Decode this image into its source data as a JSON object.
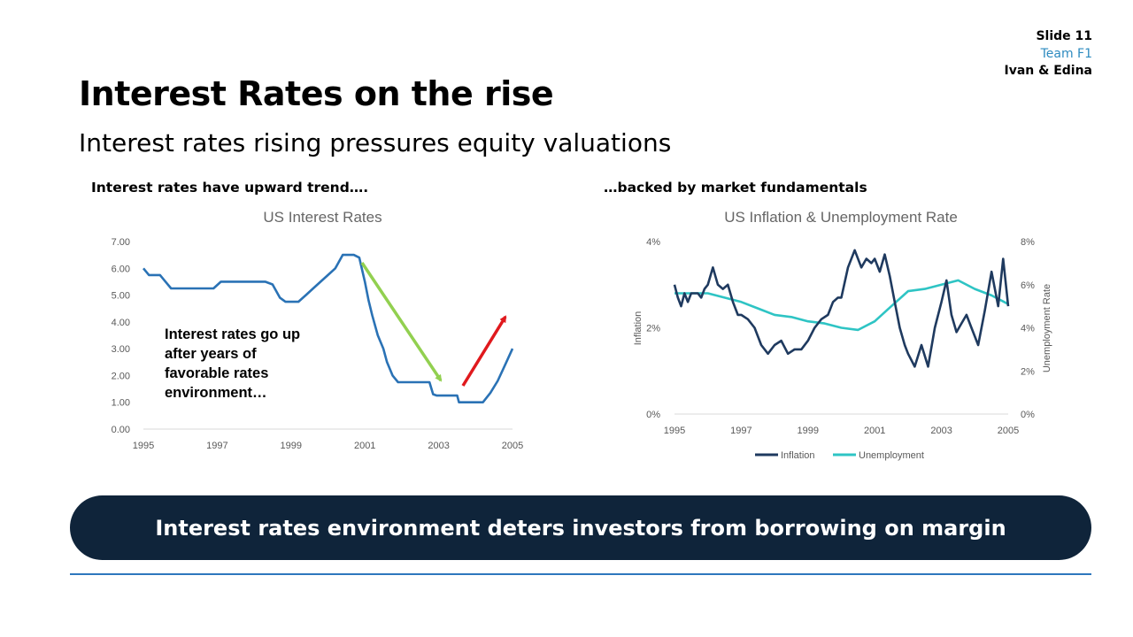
{
  "meta": {
    "slide": "Slide 11",
    "team": "Team F1",
    "authors": "Ivan & Edina"
  },
  "title": "Interest Rates on the rise",
  "subtitle": "Interest rates rising pressures equity valuations",
  "caption_left": "Interest rates have upward trend….",
  "caption_right": "…backed by market fundamentals",
  "banner": "Interest rates environment deters investors from borrowing on margin",
  "colors": {
    "rate_line": "#2a72b5",
    "down_arrow": "#92d050",
    "up_arrow": "#e0191d",
    "inflation": "#1f3a5f",
    "unemployment": "#2ec4c4",
    "banner_bg": "#0f243a",
    "accent": "#2e8bc0"
  },
  "chart_data": [
    {
      "type": "line",
      "title": "US Interest Rates",
      "xlabel": "",
      "ylabel": "",
      "xlim": [
        1995,
        2005
      ],
      "ylim": [
        0,
        7
      ],
      "x_ticks": [
        "1995",
        "1997",
        "1999",
        "2001",
        "2003",
        "2005"
      ],
      "y_ticks": [
        "0.00",
        "1.00",
        "2.00",
        "3.00",
        "4.00",
        "5.00",
        "6.00",
        "7.00"
      ],
      "annotation": "Interest rates go up after years of favorable rates environment…",
      "series": [
        {
          "x": [
            1995.0,
            1995.15,
            1995.3,
            1995.45,
            1995.6,
            1995.75,
            1995.9,
            1996.0,
            1996.1,
            1996.2,
            1996.3,
            1996.5,
            1996.7,
            1996.9,
            1997.1,
            1997.3,
            1997.5,
            1997.7,
            1997.9,
            1998.1,
            1998.3,
            1998.5,
            1998.7,
            1998.85,
            1999.0,
            1999.2,
            1999.4,
            1999.6,
            1999.8,
            2000.0,
            2000.2,
            2000.4,
            2000.55,
            2000.7,
            2000.85,
            2001.0,
            2001.1,
            2001.2,
            2001.35,
            2001.5,
            2001.6,
            2001.75,
            2001.9,
            2002.2,
            2002.5,
            2002.75,
            2002.85,
            2002.95,
            2003.2,
            2003.5,
            2003.55,
            2003.8,
            2004.0,
            2004.2,
            2004.4,
            2004.6,
            2004.8,
            2005.0
          ],
          "values": [
            6.0,
            5.75,
            5.75,
            5.75,
            5.5,
            5.25,
            5.25,
            5.25,
            5.25,
            5.25,
            5.25,
            5.25,
            5.25,
            5.25,
            5.5,
            5.5,
            5.5,
            5.5,
            5.5,
            5.5,
            5.5,
            5.4,
            4.9,
            4.75,
            4.75,
            4.75,
            5.0,
            5.25,
            5.5,
            5.75,
            6.0,
            6.5,
            6.5,
            6.5,
            6.4,
            5.5,
            4.8,
            4.25,
            3.5,
            3.0,
            2.5,
            2.0,
            1.75,
            1.75,
            1.75,
            1.75,
            1.3,
            1.25,
            1.25,
            1.25,
            1.0,
            1.0,
            1.0,
            1.0,
            1.35,
            1.8,
            2.4,
            3.0
          ]
        }
      ]
    },
    {
      "type": "line",
      "title": "US Inflation & Unemployment Rate",
      "xlabel": "",
      "ylabel": "Inflation",
      "y2label": "Unemployment Rate",
      "xlim": [
        1995,
        2005
      ],
      "ylim": [
        0,
        4
      ],
      "y2lim": [
        0,
        8
      ],
      "x_ticks": [
        "1995",
        "1997",
        "1999",
        "2001",
        "2003",
        "2005"
      ],
      "y_ticks": [
        "0%",
        "2%",
        "4%"
      ],
      "y2_ticks": [
        "0%",
        "2%",
        "4%",
        "6%",
        "8%"
      ],
      "legend": "bottom",
      "series": [
        {
          "name": "Inflation",
          "axis": "left",
          "x": [
            1995.0,
            1995.1,
            1995.2,
            1995.3,
            1995.4,
            1995.5,
            1995.6,
            1995.7,
            1995.8,
            1995.9,
            1996.0,
            1996.15,
            1996.3,
            1996.45,
            1996.6,
            1996.75,
            1996.9,
            1997.0,
            1997.2,
            1997.4,
            1997.6,
            1997.8,
            1998.0,
            1998.2,
            1998.4,
            1998.6,
            1998.8,
            1999.0,
            1999.2,
            1999.4,
            1999.6,
            1999.75,
            1999.9,
            2000.0,
            2000.2,
            2000.4,
            2000.6,
            2000.75,
            2000.9,
            2001.0,
            2001.15,
            2001.3,
            2001.45,
            2001.6,
            2001.75,
            2001.9,
            2002.0,
            2002.2,
            2002.4,
            2002.6,
            2002.8,
            2003.0,
            2003.15,
            2003.3,
            2003.45,
            2003.6,
            2003.75,
            2003.9,
            2004.1,
            2004.3,
            2004.5,
            2004.7,
            2004.85,
            2005.0
          ],
          "values": [
            3.0,
            2.7,
            2.5,
            2.8,
            2.6,
            2.8,
            2.8,
            2.8,
            2.7,
            2.9,
            3.0,
            3.4,
            3.0,
            2.9,
            3.0,
            2.6,
            2.3,
            2.3,
            2.2,
            2.0,
            1.6,
            1.4,
            1.6,
            1.7,
            1.4,
            1.5,
            1.5,
            1.7,
            2.0,
            2.2,
            2.3,
            2.6,
            2.7,
            2.7,
            3.4,
            3.8,
            3.4,
            3.6,
            3.5,
            3.6,
            3.3,
            3.7,
            3.2,
            2.6,
            2.0,
            1.6,
            1.4,
            1.1,
            1.6,
            1.1,
            2.0,
            2.6,
            3.1,
            2.3,
            1.9,
            2.1,
            2.3,
            2.0,
            1.6,
            2.4,
            3.3,
            2.5,
            3.6,
            2.5
          ]
        },
        {
          "name": "Unemployment",
          "axis": "right",
          "x": [
            1995.0,
            1995.5,
            1996.0,
            1996.5,
            1997.0,
            1997.5,
            1998.0,
            1998.5,
            1999.0,
            1999.5,
            2000.0,
            2000.5,
            2001.0,
            2001.5,
            2002.0,
            2002.5,
            2003.0,
            2003.5,
            2004.0,
            2004.5,
            2005.0
          ],
          "values": [
            5.6,
            5.6,
            5.6,
            5.4,
            5.2,
            4.9,
            4.6,
            4.5,
            4.3,
            4.2,
            4.0,
            3.9,
            4.3,
            5.0,
            5.7,
            5.8,
            6.0,
            6.2,
            5.8,
            5.5,
            5.1
          ]
        }
      ]
    }
  ]
}
